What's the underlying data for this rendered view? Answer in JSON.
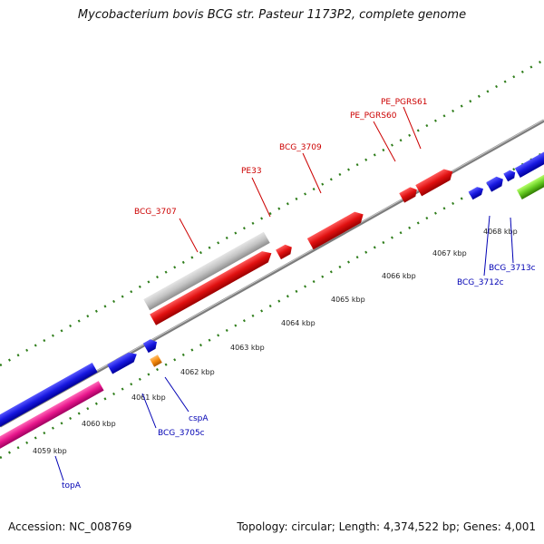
{
  "title": "Mycobacterium bovis BCG str. Pasteur 1173P2, complete genome",
  "footer": {
    "accession": "Accession: NC_008769",
    "summary": "Topology: circular; Length: 4,374,522 bp; Genes: 4,001"
  },
  "colors": {
    "backbone": "#7c7c7c",
    "tick_dots": "#2e7d1a",
    "pe_ppe": "#e01010",
    "other_gene": "#1818e0",
    "pseudo_gray": "#c4c4c4",
    "pink_feature": "#e8168c",
    "orange_feature": "#f58a0c",
    "green_feature": "#66cc22",
    "label_red": "#cc0000",
    "label_blue": "#0000b4"
  },
  "kbp_ticks": [
    "4059 kbp",
    "4060 kbp",
    "4061 kbp",
    "4062 kbp",
    "4063 kbp",
    "4064 kbp",
    "4065 kbp",
    "4066 kbp",
    "4067 kbp",
    "4068 kbp"
  ],
  "genes_top": [
    "BCG_3707",
    "PE33",
    "BCG_3709",
    "PE_PGRS60",
    "PE_PGRS61"
  ],
  "genes_bottom": [
    "topA",
    "BCG_3705c",
    "cspA",
    "BCG_3712c",
    "BCG_3713c"
  ]
}
